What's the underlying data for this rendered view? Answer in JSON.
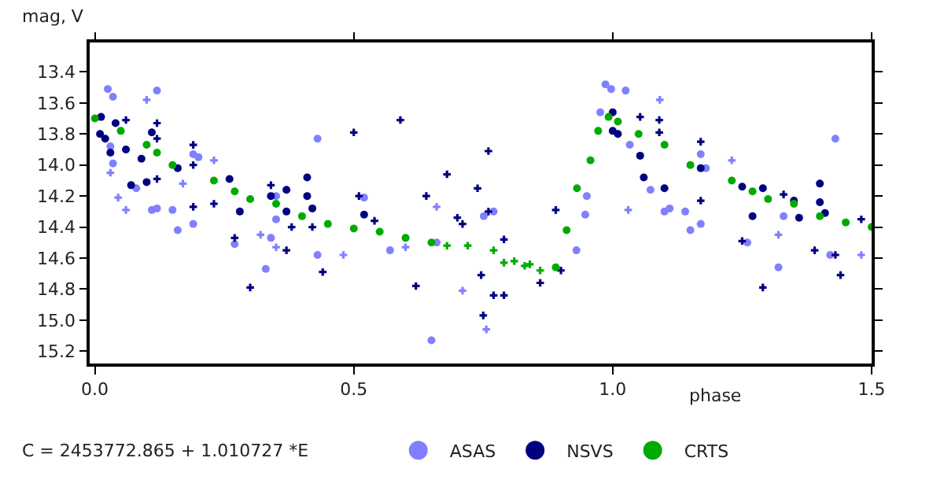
{
  "chart_data": {
    "type": "scatter",
    "xlabel": "phase",
    "ylabel": "mag, V",
    "annotations": [
      "C = 2453772.865 + 1.010727 *E"
    ],
    "xlim": [
      -0.01,
      1.5
    ],
    "xticks": [
      {
        "value": 0,
        "label": "0.0"
      },
      0.5,
      {
        "value": 1,
        "label": "1.0"
      },
      1.5
    ],
    "ylim": [
      15.28,
      13.21
    ],
    "yticks": [
      13.4,
      13.6,
      13.8,
      {
        "value": 14,
        "label": "14.0"
      },
      14.2,
      14.4,
      14.6,
      14.8,
      {
        "value": 15,
        "label": "15.0"
      },
      15.2
    ],
    "legend": "bottom",
    "series": [
      {
        "name": "ASAS",
        "color": "#8080ff",
        "marker": "circle",
        "x": [
          0.025,
          0.035,
          0.12,
          0.03,
          0.035,
          0.08,
          0.11,
          0.12,
          0.15,
          0.16,
          0.19,
          0.19,
          0.2,
          0.27,
          0.33,
          0.34,
          0.35,
          0.35,
          0.43,
          0.43,
          0.52,
          0.57,
          0.65,
          0.66,
          0.751,
          0.77,
          0.93,
          0.947,
          0.95,
          0.976,
          0.986,
          0.997,
          1.025,
          1.033,
          1.073,
          1.1,
          1.11,
          1.14,
          1.15,
          1.17,
          1.17,
          1.18,
          1.26,
          1.32,
          1.33,
          1.42,
          1.43
        ],
        "values": [
          13.51,
          13.56,
          13.52,
          13.88,
          13.99,
          14.15,
          14.29,
          14.28,
          14.29,
          14.42,
          14.38,
          13.93,
          13.95,
          14.51,
          14.67,
          14.47,
          14.35,
          14.2,
          13.83,
          14.58,
          14.21,
          14.55,
          15.13,
          14.5,
          14.33,
          14.3,
          14.55,
          14.32,
          14.2,
          13.66,
          13.48,
          13.51,
          13.52,
          13.87,
          14.16,
          14.3,
          14.28,
          14.3,
          14.42,
          14.38,
          13.93,
          14.02,
          14.5,
          14.66,
          14.33,
          14.58,
          13.83
        ]
      },
      {
        "color": "#8080ff",
        "marker": "cross",
        "x": [
          0.03,
          0.06,
          0.045,
          0.1,
          0.17,
          0.23,
          0.32,
          0.35,
          0.48,
          0.6,
          0.66,
          0.71,
          0.756,
          1.03,
          1.091,
          1.23,
          1.32,
          1.48
        ],
        "values": [
          14.05,
          14.29,
          14.21,
          13.58,
          14.12,
          13.97,
          14.45,
          14.53,
          14.58,
          14.53,
          14.27,
          14.81,
          15.06,
          14.29,
          13.58,
          13.97,
          14.45,
          14.58
        ]
      },
      {
        "name": "NSVS",
        "color": "#000080",
        "marker": "circle",
        "x": [
          0.012,
          0.01,
          0.02,
          0.03,
          0.04,
          0.06,
          0.07,
          0.09,
          0.1,
          0.11,
          0.16,
          0.26,
          0.28,
          0.34,
          0.37,
          0.37,
          0.41,
          0.41,
          0.42,
          0.52,
          1.0,
          1.0,
          1.01,
          1.053,
          1.06,
          1.1,
          1.17,
          1.25,
          1.27,
          1.29,
          1.35,
          1.36,
          1.4,
          1.4,
          1.41
        ],
        "values": [
          13.69,
          13.8,
          13.83,
          13.92,
          13.73,
          13.9,
          14.13,
          13.96,
          14.11,
          13.79,
          14.02,
          14.09,
          14.3,
          14.2,
          14.16,
          14.3,
          14.08,
          14.2,
          14.28,
          14.32,
          13.66,
          13.78,
          13.8,
          13.94,
          14.08,
          14.15,
          14.02,
          14.14,
          14.33,
          14.15,
          14.23,
          14.34,
          14.12,
          14.24,
          14.31
        ]
      },
      {
        "color": "#000080",
        "marker": "cross",
        "x": [
          0.06,
          0.12,
          0.12,
          0.12,
          0.19,
          0.19,
          0.19,
          0.23,
          0.27,
          0.3,
          0.34,
          0.37,
          0.38,
          0.42,
          0.44,
          0.5,
          0.51,
          0.54,
          0.59,
          0.62,
          0.64,
          0.68,
          0.7,
          0.71,
          0.739,
          0.746,
          0.75,
          0.76,
          0.76,
          0.77,
          0.79,
          0.79,
          0.86,
          0.9,
          0.89,
          1.053,
          1.09,
          1.09,
          1.17,
          1.17,
          1.25,
          1.29,
          1.33,
          1.39,
          1.43,
          1.44,
          1.48
        ],
        "values": [
          13.71,
          13.73,
          13.83,
          14.09,
          13.87,
          14.0,
          14.27,
          14.25,
          14.47,
          14.79,
          14.13,
          14.55,
          14.4,
          14.4,
          14.69,
          13.79,
          14.2,
          14.36,
          13.71,
          14.78,
          14.2,
          14.06,
          14.34,
          14.38,
          14.15,
          14.71,
          14.97,
          13.91,
          14.3,
          14.84,
          14.84,
          14.48,
          14.76,
          14.68,
          14.29,
          13.69,
          13.71,
          13.79,
          13.85,
          14.23,
          14.49,
          14.79,
          14.19,
          14.55,
          14.58,
          14.71,
          14.35
        ]
      },
      {
        "name": "CRTS",
        "color": "#00aa00",
        "marker": "circle",
        "x": [
          0,
          0.05,
          0.1,
          0.12,
          0.15,
          0.23,
          0.27,
          0.3,
          0.35,
          0.4,
          0.45,
          0.5,
          0.55,
          0.6,
          0.65,
          0.89,
          0.911,
          0.931,
          0.957,
          0.972,
          0.992,
          1.01,
          1.05,
          1.1,
          1.15,
          1.23,
          1.27,
          1.3,
          1.35,
          1.4,
          1.45,
          1.5
        ],
        "values": [
          13.7,
          13.78,
          13.87,
          13.92,
          14.0,
          14.1,
          14.17,
          14.22,
          14.25,
          14.33,
          14.38,
          14.41,
          14.43,
          14.47,
          14.5,
          14.66,
          14.42,
          14.15,
          13.97,
          13.78,
          13.69,
          13.72,
          13.8,
          13.87,
          14.0,
          14.1,
          14.17,
          14.22,
          14.25,
          14.33,
          14.37,
          14.4
        ]
      },
      {
        "color": "#00aa00",
        "marker": "cross",
        "x": [
          0.68,
          0.72,
          0.77,
          0.79,
          0.81,
          0.83,
          0.84,
          0.86
        ],
        "values": [
          14.52,
          14.52,
          14.55,
          14.63,
          14.62,
          14.65,
          14.64,
          14.68
        ]
      }
    ]
  }
}
